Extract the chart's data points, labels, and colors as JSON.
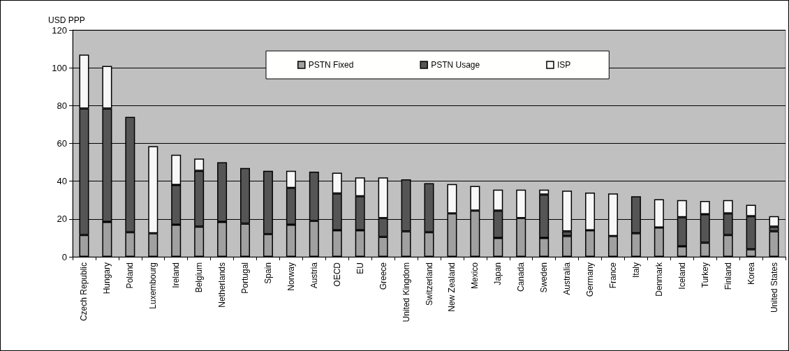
{
  "chart_data": {
    "type": "bar",
    "stacked": true,
    "ylabel": "USD PPP",
    "categories": [
      "Czech Republic",
      "Hungary",
      "Poland",
      "Luxembourg",
      "Ireland",
      "Belgium",
      "Netherlands",
      "Portugal",
      "Spain",
      "Norway",
      "Austria",
      "OECD",
      "EU",
      "Greece",
      "United Kingdom",
      "Switzerland",
      "New Zealand",
      "Mexico",
      "Japan",
      "Canada",
      "Sweden",
      "Australia",
      "Germany",
      "France",
      "Italy",
      "Denmark",
      "Iceland",
      "Turkey",
      "Finland",
      "Korea",
      "United States"
    ],
    "series": [
      {
        "name": "PSTN Fixed",
        "color": "#a0a0a0",
        "values": [
          11.5,
          18.5,
          13,
          12.5,
          17,
          16,
          18.5,
          17.5,
          12,
          17,
          19,
          14,
          14,
          10.5,
          13.5,
          13,
          23,
          24.5,
          10,
          20.5,
          10,
          11,
          14,
          11,
          12.5,
          15.5,
          5.5,
          7.5,
          11.5,
          4,
          13.5
        ]
      },
      {
        "name": "PSTN Usage",
        "color": "#555555",
        "values": [
          67,
          60,
          61,
          0,
          21,
          29.5,
          31.5,
          29.5,
          33.5,
          19.5,
          26,
          19.5,
          18,
          10,
          27.5,
          26,
          0,
          0,
          14.5,
          0,
          23,
          2.5,
          0,
          0,
          19.5,
          0,
          15.5,
          15,
          11.5,
          17.5,
          2.5
        ]
      },
      {
        "name": "ISP",
        "color": "#f8f8f8",
        "values": [
          28.5,
          22.5,
          0,
          46,
          16,
          6.5,
          0,
          0,
          0,
          9,
          0,
          11,
          10,
          21.5,
          0,
          0,
          15.5,
          13,
          11,
          15,
          2.5,
          21.5,
          20,
          22.5,
          0,
          15,
          9,
          7,
          7,
          6,
          5.5
        ]
      }
    ],
    "ylim": [
      0,
      120
    ],
    "yticks": [
      0,
      20,
      40,
      60,
      80,
      100,
      120
    ],
    "grid": "y",
    "legend": "top"
  }
}
